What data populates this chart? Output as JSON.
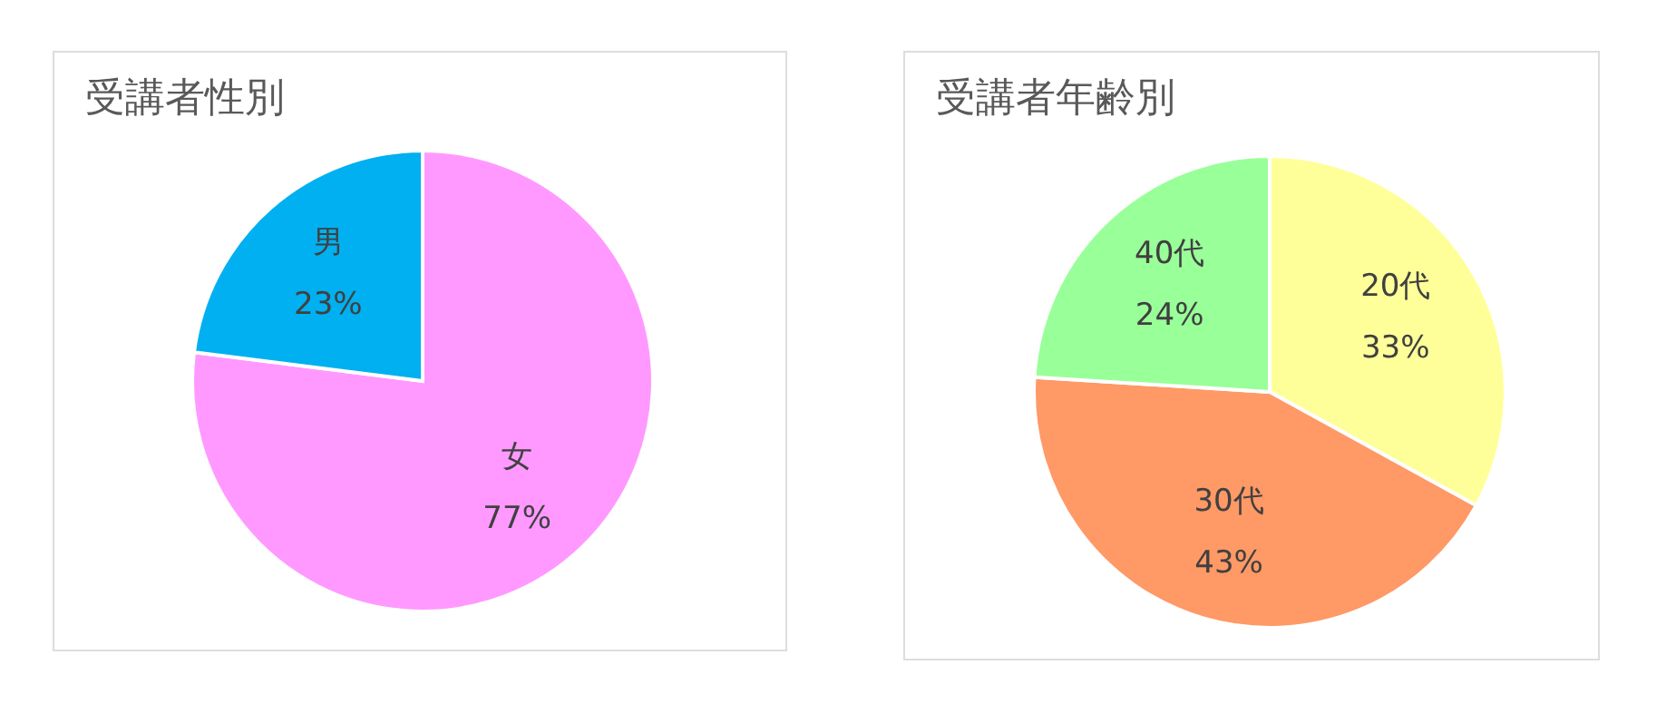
{
  "chart_data": [
    {
      "type": "pie",
      "title": "受講者性別",
      "categories": [
        "女",
        "男"
      ],
      "values": [
        77,
        23
      ],
      "colors": [
        "#ff99ff",
        "#00b0f0"
      ],
      "value_labels": [
        "77%",
        "23%"
      ],
      "legend": false
    },
    {
      "type": "pie",
      "title": "受講者年齢別",
      "categories": [
        "20代",
        "30代",
        "40代"
      ],
      "values": [
        33,
        43,
        24
      ],
      "colors": [
        "#ffff99",
        "#ff9966",
        "#99ff99"
      ],
      "value_labels": [
        "33%",
        "43%",
        "24%"
      ],
      "legend": false
    }
  ]
}
